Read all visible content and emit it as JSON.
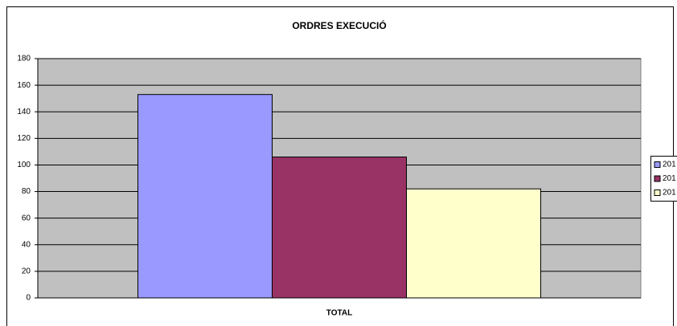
{
  "chart_data": {
    "type": "bar",
    "title": "ORDRES EXECUCIÓ",
    "categories": [
      "TOTAL"
    ],
    "series": [
      {
        "name": "201",
        "color": "#9999ff",
        "values": [
          153
        ]
      },
      {
        "name": "201",
        "color": "#993366",
        "values": [
          106
        ]
      },
      {
        "name": "201",
        "color": "#ffffcc",
        "values": [
          82
        ]
      }
    ],
    "ylim": [
      0,
      180
    ],
    "yticks": [
      0,
      20,
      40,
      60,
      80,
      100,
      120,
      140,
      160,
      180
    ],
    "grid": true,
    "plot_background": "#c0c0c0",
    "legend": "right"
  }
}
